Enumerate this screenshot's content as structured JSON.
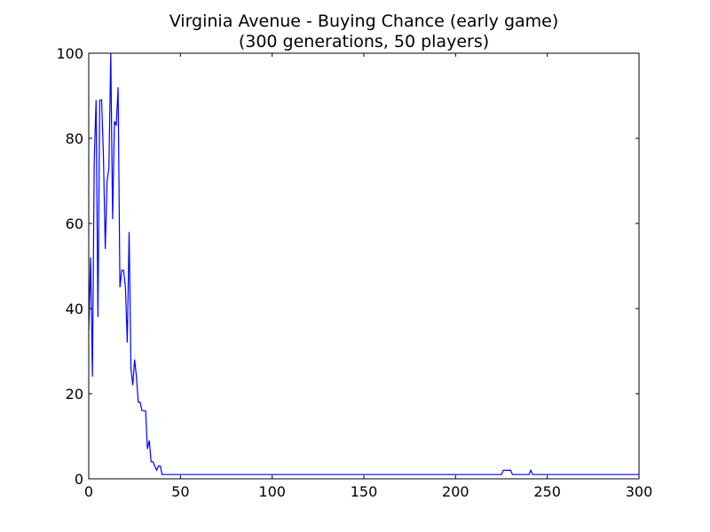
{
  "chart_data": {
    "type": "line",
    "title": "Virginia Avenue - Buying Chance (early game)",
    "subtitle": "(300 generations, 50 players)",
    "xlabel": "",
    "ylabel": "",
    "xlim": [
      0,
      300
    ],
    "ylim": [
      0,
      100
    ],
    "xticks": [
      0,
      50,
      100,
      150,
      200,
      250,
      300
    ],
    "yticks": [
      0,
      20,
      40,
      60,
      80,
      100
    ],
    "grid": false,
    "legend": "none",
    "series": [
      {
        "color": "#0000ff",
        "x": [
          0,
          1,
          2,
          3,
          4,
          5,
          6,
          7,
          8,
          9,
          10,
          11,
          12,
          13,
          14,
          15,
          16,
          17,
          18,
          19,
          20,
          21,
          22,
          23,
          24,
          25,
          26,
          27,
          28,
          29,
          30,
          31,
          32,
          33,
          34,
          35,
          36,
          37,
          38,
          39,
          40,
          41,
          225,
          226,
          230,
          231,
          239,
          240,
          241,
          242,
          300
        ],
        "y": [
          35,
          52,
          24,
          75,
          89,
          38,
          89,
          89,
          76,
          54,
          70,
          73,
          100,
          61,
          84,
          83,
          92,
          45,
          49,
          49,
          45,
          32,
          58,
          26,
          22,
          28,
          24,
          18,
          18,
          16,
          16,
          16,
          7,
          9,
          4,
          4,
          3,
          2,
          3,
          3,
          1,
          1,
          1,
          2,
          2,
          1,
          1,
          1,
          2,
          1,
          1
        ]
      }
    ]
  }
}
